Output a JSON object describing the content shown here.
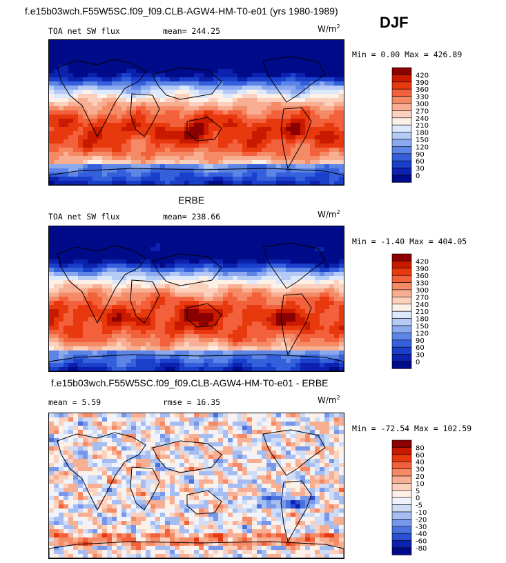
{
  "header": {
    "title": "f.e15b03wch.F55W5SC.f09_f09.CLB-AGW4-HM-T0-e01 (yrs 1980-1989)",
    "season": "DJF"
  },
  "panels": [
    {
      "id": "model",
      "heading": "",
      "left_label": "TOA net SW flux",
      "stat_label": "mean= 244.25",
      "units_base": "W/m",
      "units_exp": "2",
      "range_label": "Min =   0.00 Max = 426.89",
      "color_ticks": [
        "420",
        "390",
        "360",
        "330",
        "300",
        "270",
        "240",
        "210",
        "180",
        "150",
        "120",
        "90",
        "60",
        "30",
        "0"
      ],
      "colors": [
        "#8b0000",
        "#c91a00",
        "#e8380e",
        "#f2613b",
        "#f58a66",
        "#f8ae92",
        "#fbd0bc",
        "#fdf0e6",
        "#dde8fb",
        "#b5cbf5",
        "#8aa9ee",
        "#5c85e6",
        "#3560dc",
        "#1a3fcb",
        "#0c21ad",
        "#000b8a"
      ],
      "field": "sw"
    },
    {
      "id": "obs",
      "heading": "ERBE",
      "left_label": "TOA net SW flux",
      "stat_label": "mean= 238.66",
      "units_base": "W/m",
      "units_exp": "2",
      "range_label": "Min =  -1.40 Max = 404.05",
      "color_ticks": [
        "420",
        "390",
        "360",
        "330",
        "300",
        "270",
        "240",
        "210",
        "180",
        "150",
        "120",
        "90",
        "60",
        "30",
        "0"
      ],
      "colors": [
        "#8b0000",
        "#c91a00",
        "#e8380e",
        "#f2613b",
        "#f58a66",
        "#f8ae92",
        "#fbd0bc",
        "#fdf0e6",
        "#dde8fb",
        "#b5cbf5",
        "#8aa9ee",
        "#5c85e6",
        "#3560dc",
        "#1a3fcb",
        "#0c21ad",
        "#000b8a"
      ],
      "field": "sw_obs"
    },
    {
      "id": "diff",
      "heading": "f.e15b03wch.F55W5SC.f09_f09.CLB-AGW4-HM-T0-e01 - ERBE",
      "left_label": "mean =   5.59",
      "stat_label": "rmse =  16.35",
      "units_base": "W/m",
      "units_exp": "2",
      "range_label": "Min = -72.54 Max = 102.59",
      "color_ticks": [
        "80",
        "60",
        "40",
        "30",
        "20",
        "10",
        "5",
        "0",
        "-5",
        "-10",
        "-20",
        "-30",
        "-40",
        "-60",
        "-80"
      ],
      "colors": [
        "#8b0000",
        "#c91a00",
        "#e8380e",
        "#f2613b",
        "#f58a66",
        "#f8ae92",
        "#fbd0bc",
        "#fdf0e6",
        "#eef3fd",
        "#cfdcf8",
        "#a6bdf1",
        "#7897e8",
        "#4b71df",
        "#2a4fd3",
        "#0c21ad",
        "#000b8a"
      ],
      "field": "diff"
    }
  ],
  "chart_data": [
    {
      "type": "heatmap",
      "title": "TOA net SW flux",
      "subtitle": "mean= 244.25",
      "units": "W/m^2",
      "levels": [
        0,
        30,
        60,
        90,
        120,
        150,
        180,
        210,
        240,
        270,
        300,
        330,
        360,
        390,
        420
      ],
      "min": 0.0,
      "max": 426.89,
      "mean": 244.25
    },
    {
      "type": "heatmap",
      "title": "ERBE TOA net SW flux",
      "subtitle": "mean= 238.66",
      "units": "W/m^2",
      "levels": [
        0,
        30,
        60,
        90,
        120,
        150,
        180,
        210,
        240,
        270,
        300,
        330,
        360,
        390,
        420
      ],
      "min": -1.4,
      "max": 404.05,
      "mean": 238.66
    },
    {
      "type": "heatmap",
      "title": "f.e15b03wch.F55W5SC.f09_f09.CLB-AGW4-HM-T0-e01 - ERBE",
      "subtitle": "mean = 5.59, rmse = 16.35",
      "units": "W/m^2",
      "levels": [
        -80,
        -60,
        -40,
        -30,
        -20,
        -10,
        -5,
        0,
        5,
        10,
        20,
        30,
        40,
        60,
        80
      ],
      "min": -72.54,
      "max": 102.59,
      "mean": 5.59,
      "rmse": 16.35
    }
  ]
}
